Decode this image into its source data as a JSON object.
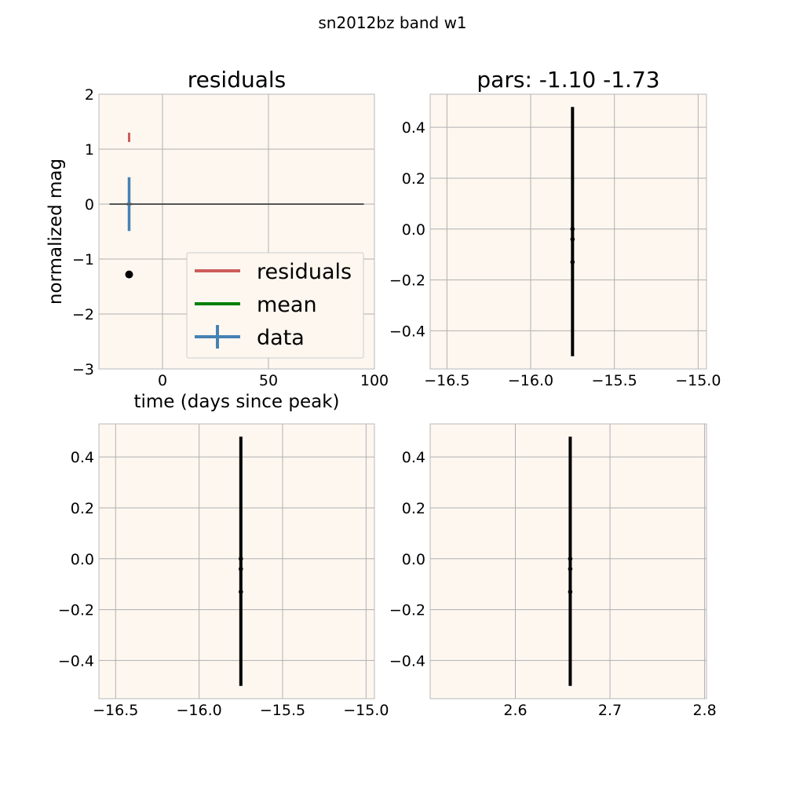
{
  "figure": {
    "suptitle": "sn2012bz band w1"
  },
  "chart_data": [
    {
      "panel": "top-left",
      "type": "line",
      "title": "residuals",
      "xlabel": "time (days since peak)",
      "ylabel": "normalized mag",
      "xlim": [
        -30,
        100
      ],
      "ylim": [
        -3,
        2
      ],
      "xticks": [
        0,
        50,
        100
      ],
      "yticks": [
        -3,
        -2,
        -1,
        0,
        1,
        2
      ],
      "grid": true,
      "legend": {
        "placement": "lower-right",
        "entries": [
          {
            "label": "residuals",
            "color": "#cd5c5c",
            "kind": "line"
          },
          {
            "label": "mean",
            "color": "#008000",
            "kind": "line"
          },
          {
            "label": "data",
            "color": "#4682b4",
            "kind": "errorbar"
          }
        ]
      },
      "series": [
        {
          "name": "residuals",
          "color": "#cd5c5c",
          "segments": [
            {
              "x": -15.75,
              "y0": 1.13,
              "y1": 1.3
            }
          ]
        },
        {
          "name": "data",
          "color": "#4682b4",
          "errorbars": [
            {
              "x": -15.75,
              "y": 0,
              "yerr": 0.49,
              "xerr": 1.1
            }
          ]
        },
        {
          "color": "#555555",
          "hline": {
            "y": 0,
            "x0": -25,
            "x1": 95
          }
        },
        {
          "color": "#000000",
          "points": [
            {
              "x": -15.75,
              "y": -1.28
            }
          ]
        }
      ]
    },
    {
      "panel": "top-right",
      "type": "line",
      "title": "pars: -1.10 -1.73",
      "xlim": [
        -16.6,
        -14.95
      ],
      "ylim": [
        -0.55,
        0.53
      ],
      "xticks": [
        -16.5,
        -16.0,
        -15.5,
        -15.0
      ],
      "xtick_labels": [
        "−16.5",
        "−16.0",
        "−15.5",
        "−15.0"
      ],
      "yticks": [
        -0.4,
        -0.2,
        0.0,
        0.2,
        0.4
      ],
      "ytick_labels": [
        "−0.4",
        "−0.2",
        "0.0",
        "0.2",
        "0.4"
      ],
      "grid": true,
      "series": [
        {
          "color": "#000000",
          "vline": {
            "x": -15.75,
            "y0": -0.5,
            "y1": 0.48
          },
          "points": [
            {
              "x": -15.75,
              "y": 0.0
            },
            {
              "x": -15.75,
              "y": -0.04
            },
            {
              "x": -15.75,
              "y": -0.13
            }
          ]
        }
      ]
    },
    {
      "panel": "bottom-left",
      "type": "line",
      "title": "",
      "xlim": [
        -16.6,
        -14.95
      ],
      "ylim": [
        -0.55,
        0.53
      ],
      "xticks": [
        -16.5,
        -16.0,
        -15.5,
        -15.0
      ],
      "xtick_labels": [
        "−16.5",
        "−16.0",
        "−15.5",
        "−15.0"
      ],
      "yticks": [
        -0.4,
        -0.2,
        0.0,
        0.2,
        0.4
      ],
      "ytick_labels": [
        "−0.4",
        "−0.2",
        "0.0",
        "0.2",
        "0.4"
      ],
      "grid": true,
      "series": [
        {
          "color": "#000000",
          "vline": {
            "x": -15.75,
            "y0": -0.5,
            "y1": 0.48
          },
          "points": [
            {
              "x": -15.75,
              "y": 0.0
            },
            {
              "x": -15.75,
              "y": -0.04
            },
            {
              "x": -15.75,
              "y": -0.13
            }
          ]
        }
      ]
    },
    {
      "panel": "bottom-right",
      "type": "line",
      "title": "",
      "xlim": [
        2.51,
        2.802
      ],
      "ylim": [
        -0.55,
        0.53
      ],
      "xticks": [
        2.6,
        2.7,
        2.8
      ],
      "xtick_labels": [
        "2.6",
        "2.7",
        "2.8"
      ],
      "yticks": [
        -0.4,
        -0.2,
        0.0,
        0.2,
        0.4
      ],
      "ytick_labels": [
        "−0.4",
        "−0.2",
        "0.0",
        "0.2",
        "0.4"
      ],
      "grid": true,
      "series": [
        {
          "color": "#000000",
          "vline": {
            "x": 2.658,
            "y0": -0.5,
            "y1": 0.48
          },
          "points": [
            {
              "x": 2.658,
              "y": 0.0
            },
            {
              "x": 2.658,
              "y": -0.04
            },
            {
              "x": 2.658,
              "y": -0.13
            }
          ]
        }
      ]
    }
  ]
}
